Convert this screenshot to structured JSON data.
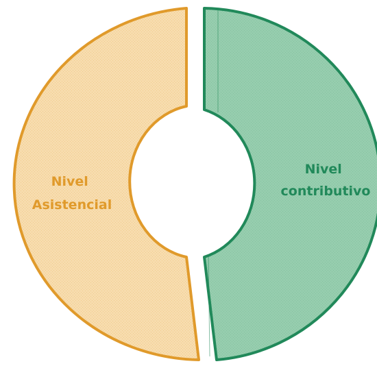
{
  "diagram": {
    "segments": [
      {
        "id": "asistencial",
        "label_lines": [
          "Nivel",
          "Asistencial"
        ],
        "fill": "#f7dcae",
        "stroke": "#e09a2b",
        "text_color": "#e09a2b"
      },
      {
        "id": "contributivo",
        "label_lines": [
          "Nivel",
          "contributivo"
        ],
        "fill": "#96cdae",
        "stroke": "#21895a",
        "text_color": "#21895a"
      }
    ]
  }
}
